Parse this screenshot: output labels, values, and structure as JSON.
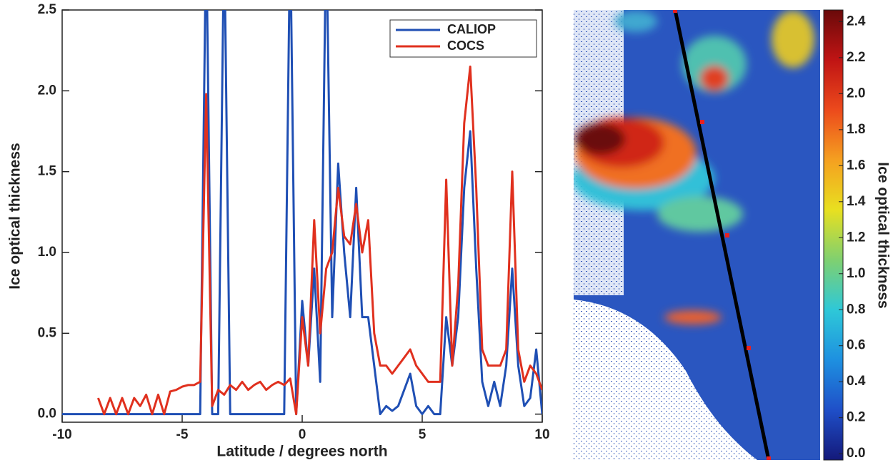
{
  "chart_data": [
    {
      "type": "line",
      "xlabel": "Latitude / degrees north",
      "ylabel": "Ice optical thickness",
      "xlim": [
        -10,
        10
      ],
      "ylim": [
        -0.05,
        2.5
      ],
      "xticks": [
        -10,
        -5,
        0,
        5,
        10
      ],
      "yticks": [
        {
          "value": 0,
          "label": "0.0"
        },
        0.5,
        {
          "value": 1,
          "label": "1.0"
        },
        1.5,
        {
          "value": 2,
          "label": "2.0"
        },
        2.5
      ],
      "legend": "upper right",
      "x": [
        -10,
        -9.75,
        -9.5,
        -9.25,
        -9,
        -8.75,
        -8.5,
        -8.25,
        -8,
        -7.75,
        -7.5,
        -7.25,
        -7,
        -6.75,
        -6.5,
        -6.25,
        -6,
        -5.75,
        -5.5,
        -5.25,
        -5,
        -4.75,
        -4.5,
        -4.25,
        -4,
        -3.75,
        -3.5,
        -3.25,
        -3,
        -2.75,
        -2.5,
        -2.25,
        -2,
        -1.75,
        -1.5,
        -1.25,
        -1,
        -0.75,
        -0.5,
        -0.25,
        0,
        0.25,
        0.5,
        0.75,
        1,
        1.25,
        1.5,
        1.75,
        2,
        2.25,
        2.5,
        2.75,
        3,
        3.25,
        3.5,
        3.75,
        4,
        4.25,
        4.5,
        4.75,
        5,
        5.25,
        5.5,
        5.75,
        6,
        6.25,
        6.5,
        6.75,
        7,
        7.25,
        7.5,
        7.75,
        8,
        8.25,
        8.5,
        8.75,
        9,
        9.25,
        9.5,
        9.75,
        10
      ],
      "series": [
        {
          "name": "CALIOP",
          "color": "#1f4fb4",
          "values": [
            0,
            0,
            0,
            0,
            0,
            0,
            0,
            0,
            0,
            0,
            0,
            0,
            0,
            0,
            0,
            0,
            0,
            0,
            0,
            0,
            0,
            0,
            0,
            0,
            3.0,
            0,
            0,
            3.0,
            0,
            0,
            0,
            0,
            0,
            0,
            0,
            0,
            0,
            0,
            3.0,
            0,
            0.7,
            0.3,
            0.9,
            0.2,
            3.0,
            0.6,
            1.55,
            1.0,
            0.6,
            1.4,
            0.6,
            0.6,
            0.3,
            0,
            0.05,
            0.02,
            0.05,
            0.15,
            0.25,
            0.05,
            0,
            0.05,
            0,
            0,
            0.6,
            0.3,
            0.6,
            1.4,
            1.75,
            0.9,
            0.2,
            0.05,
            0.2,
            0.05,
            0.3,
            0.9,
            0.3,
            0.05,
            0.1,
            0.4,
            0
          ]
        },
        {
          "name": "COCS",
          "color": "#e0301e",
          "values": [
            null,
            null,
            null,
            null,
            null,
            null,
            0.1,
            0,
            0.1,
            0,
            0.1,
            0,
            0.1,
            0.05,
            0.12,
            0,
            0.12,
            0,
            0.14,
            0.15,
            0.17,
            0.18,
            0.18,
            0.2,
            1.98,
            0.05,
            0.15,
            0.12,
            0.18,
            0.15,
            0.2,
            0.15,
            0.18,
            0.2,
            0.15,
            0.18,
            0.2,
            0.18,
            0.22,
            0,
            0.6,
            0.3,
            1.2,
            0.5,
            0.9,
            1.0,
            1.4,
            1.1,
            1.05,
            1.3,
            1.0,
            1.2,
            0.5,
            0.3,
            0.3,
            0.25,
            0.3,
            0.35,
            0.4,
            0.3,
            0.25,
            0.2,
            0.2,
            0.2,
            1.45,
            0.3,
            0.8,
            1.8,
            2.15,
            1.4,
            0.4,
            0.3,
            0.3,
            0.3,
            0.4,
            1.5,
            0.4,
            0.2,
            0.3,
            0.25,
            0.15
          ]
        }
      ]
    },
    {
      "type": "map",
      "colorbar_label": "Ice optical thickness",
      "clim": [
        -0.035,
        2.465
      ],
      "cticks": [
        {
          "value": 0,
          "label": "0.0"
        },
        0.2,
        0.4,
        0.6,
        0.8,
        {
          "value": 1,
          "label": "1.0"
        },
        1.2,
        1.4,
        1.6,
        1.8,
        {
          "value": 2,
          "label": "2.0"
        },
        2.2,
        2.4
      ],
      "colormap": [
        "#14197a",
        "#1f4fc8",
        "#1e90e0",
        "#2ec8d8",
        "#7fd070",
        "#e8e020",
        "#f5a020",
        "#ec4a1c",
        "#c01414",
        "#6a0a0a"
      ]
    }
  ]
}
